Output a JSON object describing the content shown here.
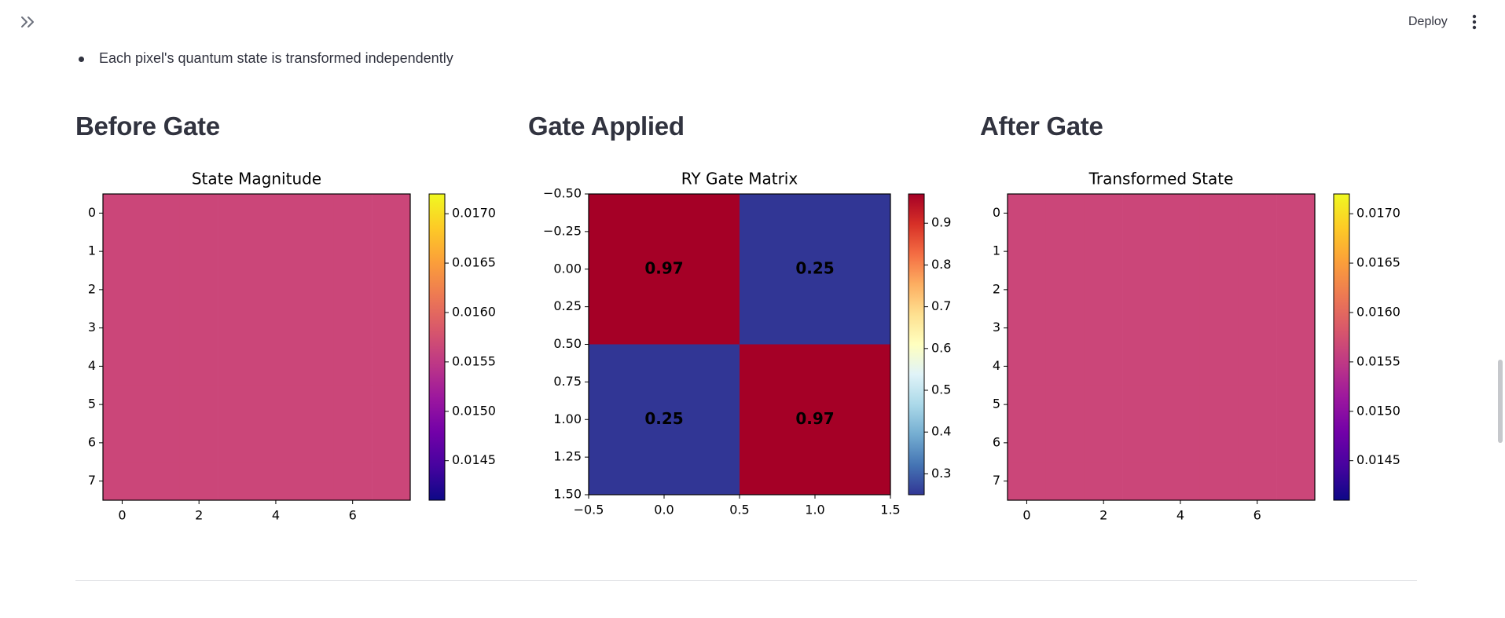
{
  "header": {
    "deploy_label": "Deploy"
  },
  "icons": {
    "expand": "double-chevron-right-icon",
    "menu": "vertical-ellipsis-icon"
  },
  "bullets": [
    "Each pixel's quantum state is transformed independently"
  ],
  "columns": [
    {
      "heading": "Before Gate"
    },
    {
      "heading": "Gate Applied"
    },
    {
      "heading": "After Gate"
    }
  ],
  "colors": {
    "text": "#31333f",
    "state_fill": "#cb4679",
    "gate_high": "#a50026",
    "gate_low": "#313695"
  },
  "chart_data": [
    {
      "type": "heatmap",
      "title": "State Magnitude",
      "colormap": "plasma",
      "shape": [
        8,
        8
      ],
      "uniform_value": 0.015625,
      "x_ticks": [
        "0",
        "2",
        "4",
        "6"
      ],
      "y_ticks": [
        "0",
        "1",
        "2",
        "3",
        "4",
        "5",
        "6",
        "7"
      ],
      "colorbar_ticks": [
        "0.0145",
        "0.0150",
        "0.0155",
        "0.0160",
        "0.0165",
        "0.0170"
      ],
      "colorbar_range": [
        0.0141,
        0.0172
      ]
    },
    {
      "type": "heatmap",
      "title": "RY Gate Matrix",
      "colormap": "RdYlBu_r",
      "matrix": [
        [
          0.97,
          0.25
        ],
        [
          0.25,
          0.97
        ]
      ],
      "cell_labels": [
        [
          "0.97",
          "0.25"
        ],
        [
          "0.25",
          "0.97"
        ]
      ],
      "x_ticks": [
        "−0.5",
        "0.0",
        "0.5",
        "1.0",
        "1.5"
      ],
      "y_ticks": [
        "−0.50",
        "−0.25",
        "0.00",
        "0.25",
        "0.50",
        "0.75",
        "1.00",
        "1.25",
        "1.50"
      ],
      "colorbar_ticks": [
        "0.3",
        "0.4",
        "0.5",
        "0.6",
        "0.7",
        "0.8",
        "0.9"
      ],
      "colorbar_range": [
        0.25,
        0.97
      ]
    },
    {
      "type": "heatmap",
      "title": "Transformed State",
      "colormap": "plasma",
      "shape": [
        8,
        8
      ],
      "uniform_value": 0.015625,
      "x_ticks": [
        "0",
        "2",
        "4",
        "6"
      ],
      "y_ticks": [
        "0",
        "1",
        "2",
        "3",
        "4",
        "5",
        "6",
        "7"
      ],
      "colorbar_ticks": [
        "0.0145",
        "0.0150",
        "0.0155",
        "0.0160",
        "0.0165",
        "0.0170"
      ],
      "colorbar_range": [
        0.0141,
        0.0172
      ]
    }
  ]
}
